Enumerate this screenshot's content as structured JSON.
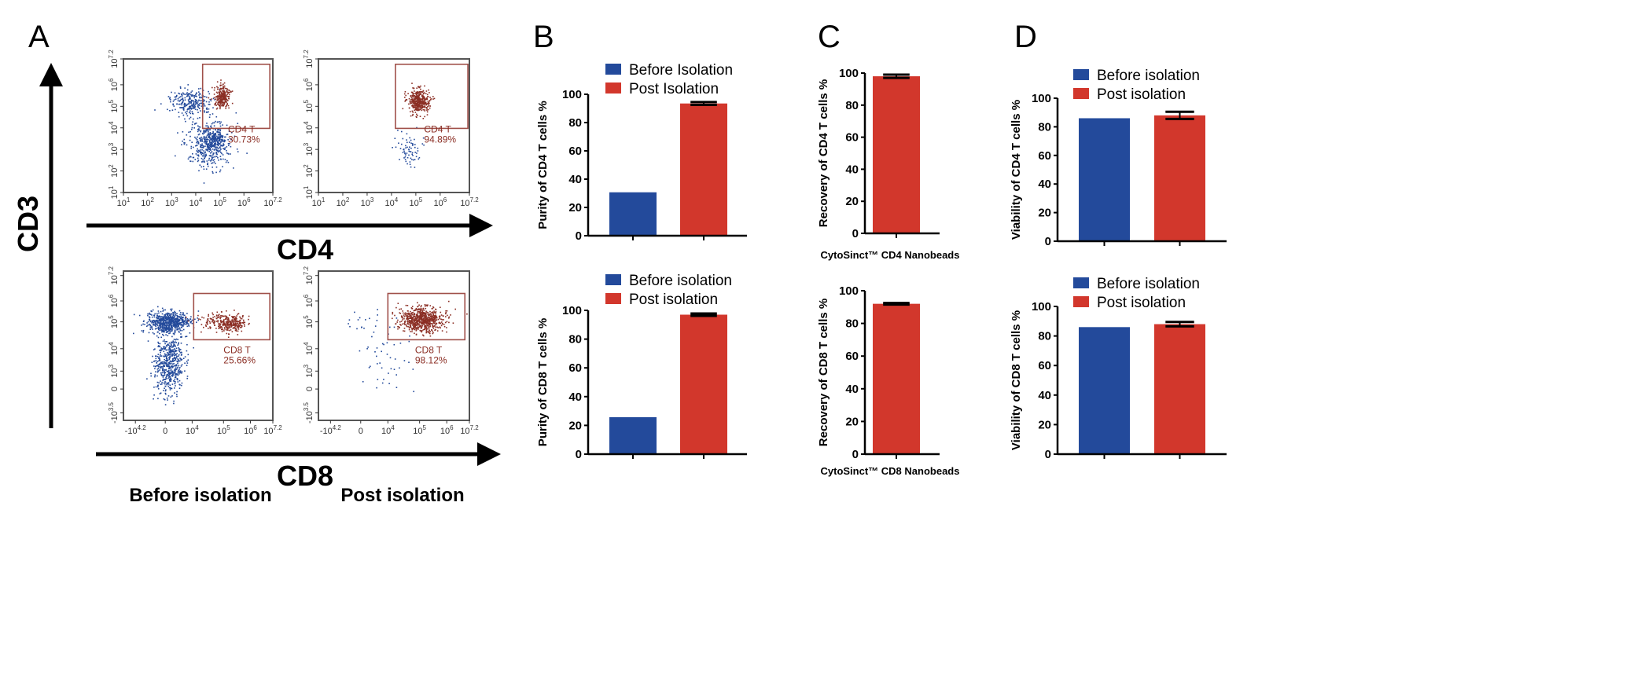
{
  "panels": {
    "a": {
      "letter": "A",
      "y_axis_label": "CD3",
      "top_x_axis_label": "CD4",
      "bottom_x_axis_label": "CD8",
      "conditions": [
        "Before isolation",
        "Post isolation"
      ]
    },
    "b": {
      "letter": "B"
    },
    "c": {
      "letter": "C"
    },
    "d": {
      "letter": "D"
    }
  },
  "colors": {
    "before": "#234a9b",
    "post": "#d2372c",
    "gate": "#a0504a",
    "gated_events": "#8b2e24",
    "ungated_events": "#234a9b"
  },
  "chart_data": [
    {
      "id": "flow-cd4-before",
      "type": "scatter",
      "panel": "A",
      "x_scale": "log",
      "y_scale": "log",
      "x_ticks": [
        {
          "b": "10",
          "e": "1"
        },
        {
          "b": "10",
          "e": "2"
        },
        {
          "b": "10",
          "e": "3"
        },
        {
          "b": "10",
          "e": "4"
        },
        {
          "b": "10",
          "e": "5"
        },
        {
          "b": "10",
          "e": "6"
        },
        {
          "b": "10",
          "e": "7.2"
        }
      ],
      "y_ticks": [
        {
          "b": "10",
          "e": "1"
        },
        {
          "b": "10",
          "e": "2"
        },
        {
          "b": "10",
          "e": "3"
        },
        {
          "b": "10",
          "e": "4"
        },
        {
          "b": "10",
          "e": "5"
        },
        {
          "b": "10",
          "e": "6"
        },
        {
          "b": "10",
          "e": "7.2"
        }
      ],
      "gate": {
        "name": "CD4 T",
        "percent": "30.73%"
      }
    },
    {
      "id": "flow-cd4-post",
      "type": "scatter",
      "panel": "A",
      "x_scale": "log",
      "y_scale": "log",
      "x_ticks": [
        {
          "b": "10",
          "e": "1"
        },
        {
          "b": "10",
          "e": "2"
        },
        {
          "b": "10",
          "e": "3"
        },
        {
          "b": "10",
          "e": "4"
        },
        {
          "b": "10",
          "e": "5"
        },
        {
          "b": "10",
          "e": "6"
        },
        {
          "b": "10",
          "e": "7.2"
        }
      ],
      "y_ticks": [
        {
          "b": "10",
          "e": "1"
        },
        {
          "b": "10",
          "e": "2"
        },
        {
          "b": "10",
          "e": "3"
        },
        {
          "b": "10",
          "e": "4"
        },
        {
          "b": "10",
          "e": "5"
        },
        {
          "b": "10",
          "e": "6"
        },
        {
          "b": "10",
          "e": "7.2"
        }
      ],
      "gate": {
        "name": "CD4 T",
        "percent": "94.89%"
      }
    },
    {
      "id": "flow-cd8-before",
      "type": "scatter",
      "panel": "A",
      "x_scale": "biexponential",
      "y_scale": "biexponential",
      "x_ticks": [
        {
          "b": "-10",
          "e": "4.2"
        },
        {
          "b": "0",
          "e": ""
        },
        {
          "b": "10",
          "e": "4"
        },
        {
          "b": "10",
          "e": "5"
        },
        {
          "b": "10",
          "e": "6"
        },
        {
          "b": "10",
          "e": "7.2"
        }
      ],
      "y_ticks": [
        {
          "b": "-10",
          "e": "3.5"
        },
        {
          "b": "0",
          "e": ""
        },
        {
          "b": "10",
          "e": "3"
        },
        {
          "b": "10",
          "e": "4"
        },
        {
          "b": "10",
          "e": "5"
        },
        {
          "b": "10",
          "e": "6"
        },
        {
          "b": "10",
          "e": "7.2"
        }
      ],
      "gate": {
        "name": "CD8 T",
        "percent": "25.66%"
      }
    },
    {
      "id": "flow-cd8-post",
      "type": "scatter",
      "panel": "A",
      "x_scale": "biexponential",
      "y_scale": "biexponential",
      "x_ticks": [
        {
          "b": "-10",
          "e": "4.2"
        },
        {
          "b": "0",
          "e": ""
        },
        {
          "b": "10",
          "e": "4"
        },
        {
          "b": "10",
          "e": "5"
        },
        {
          "b": "10",
          "e": "6"
        },
        {
          "b": "10",
          "e": "7.2"
        }
      ],
      "y_ticks": [
        {
          "b": "-10",
          "e": "3.5"
        },
        {
          "b": "0",
          "e": ""
        },
        {
          "b": "10",
          "e": "3"
        },
        {
          "b": "10",
          "e": "4"
        },
        {
          "b": "10",
          "e": "5"
        },
        {
          "b": "10",
          "e": "6"
        },
        {
          "b": "10",
          "e": "7.2"
        }
      ],
      "gate": {
        "name": "CD8 T",
        "percent": "98.12%"
      }
    },
    {
      "id": "purity-cd4",
      "type": "bar",
      "panel": "B",
      "ylabel": "Purity of CD4 T cells %",
      "xlabel": "",
      "ylim": [
        0,
        100
      ],
      "yticks": [
        "0",
        "20",
        "40",
        "60",
        "80",
        "100"
      ],
      "legend": [
        "Before Isolation",
        "Post Isolation"
      ],
      "legend_position": "top-left",
      "series": [
        {
          "name": "Before Isolation",
          "value": 30.7,
          "error": 0
        },
        {
          "name": "Post Isolation",
          "value": 93.5,
          "error": 1
        }
      ]
    },
    {
      "id": "purity-cd8",
      "type": "bar",
      "panel": "B",
      "ylabel": "Purity of CD8 T cells %",
      "xlabel": "",
      "ylim": [
        0,
        100
      ],
      "yticks": [
        "0",
        "20",
        "40",
        "60",
        "80",
        "100"
      ],
      "legend": [
        "Before isolation",
        "Post isolation"
      ],
      "legend_position": "top-left",
      "series": [
        {
          "name": "Before isolation",
          "value": 25.7,
          "error": 0
        },
        {
          "name": "Post isolation",
          "value": 97,
          "error": 0.8
        }
      ]
    },
    {
      "id": "recovery-cd4",
      "type": "bar",
      "panel": "C",
      "ylabel": "Recovery of CD4 T cells %",
      "xlabel": "CytoSinct™ CD4 Nanobeads",
      "ylim": [
        0,
        100
      ],
      "yticks": [
        "0",
        "20",
        "40",
        "60",
        "80",
        "100"
      ],
      "legend": [],
      "series": [
        {
          "value": 98,
          "error": 1
        }
      ]
    },
    {
      "id": "recovery-cd8",
      "type": "bar",
      "panel": "C",
      "ylabel": "Recovery of CD8 T cells %",
      "xlabel": "CytoSinct™ CD8 Nanobeads",
      "ylim": [
        0,
        100
      ],
      "yticks": [
        "0",
        "20",
        "40",
        "60",
        "80",
        "100"
      ],
      "legend": [],
      "series": [
        {
          "value": 92,
          "error": 0.5
        }
      ]
    },
    {
      "id": "viability-cd4",
      "type": "bar",
      "panel": "D",
      "ylabel": "Viability of CD4 T cells %",
      "xlabel": "",
      "ylim": [
        0,
        100
      ],
      "yticks": [
        "0",
        "20",
        "40",
        "60",
        "80",
        "100"
      ],
      "legend": [
        "Before isolation",
        "Post isolation"
      ],
      "legend_position": "top-left",
      "series": [
        {
          "name": "Before isolation",
          "value": 86,
          "error": 0
        },
        {
          "name": "Post isolation",
          "value": 88,
          "error": 2.5
        }
      ]
    },
    {
      "id": "viability-cd8",
      "type": "bar",
      "panel": "D",
      "ylabel": "Viability of CD8 T cells %",
      "xlabel": "",
      "ylim": [
        0,
        100
      ],
      "yticks": [
        "0",
        "20",
        "40",
        "60",
        "80",
        "100"
      ],
      "legend": [
        "Before isolation",
        "Post isolation"
      ],
      "legend_position": "top-left",
      "series": [
        {
          "name": "Before isolation",
          "value": 86,
          "error": 0
        },
        {
          "name": "Post isolation",
          "value": 88,
          "error": 1.5
        }
      ]
    }
  ]
}
